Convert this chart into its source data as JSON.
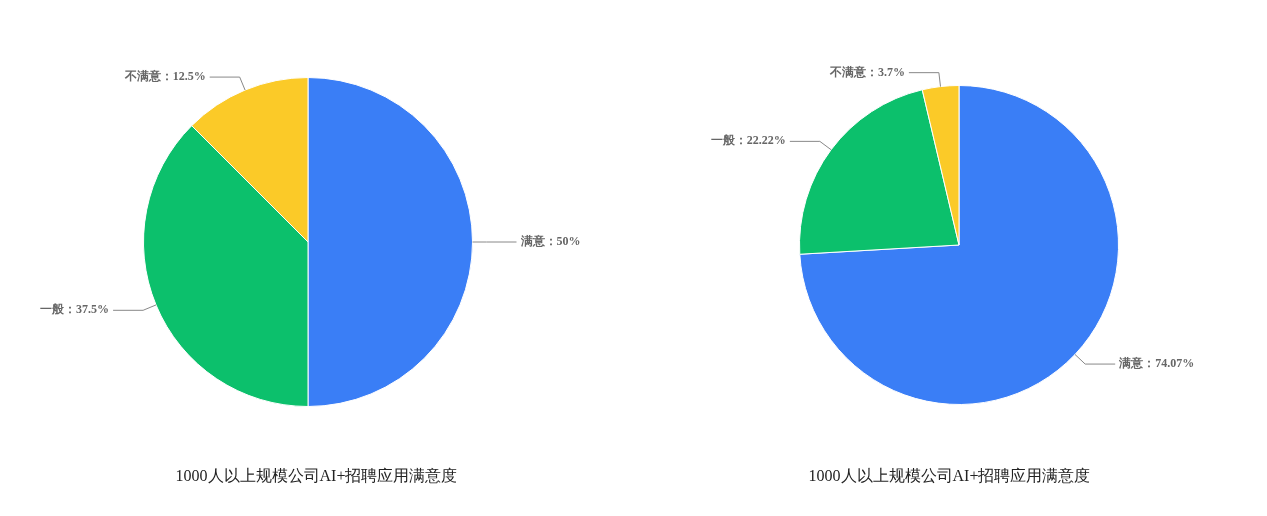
{
  "chart_data": [
    {
      "type": "pie",
      "title": "1000人以上规模公司AI+招聘应用满意度",
      "categories": [
        "满意",
        "一般",
        "不满意"
      ],
      "values": [
        50,
        37.5,
        12.5
      ],
      "colors": [
        "#3a7ef6",
        "#0cc06c",
        "#fbca28"
      ],
      "value_labels": [
        "：50%",
        "：37.5%",
        "：12.5%"
      ],
      "legend": false
    },
    {
      "type": "pie",
      "title": "1000人以上规模公司AI+招聘应用满意度",
      "categories": [
        "满意",
        "一般",
        "不满意"
      ],
      "values": [
        74.07,
        22.22,
        3.7
      ],
      "colors": [
        "#3a7ef6",
        "#0cc06c",
        "#fbca28"
      ],
      "value_labels": [
        "：74.07%",
        "：22.22%",
        "：3.7%"
      ],
      "legend": false
    }
  ]
}
